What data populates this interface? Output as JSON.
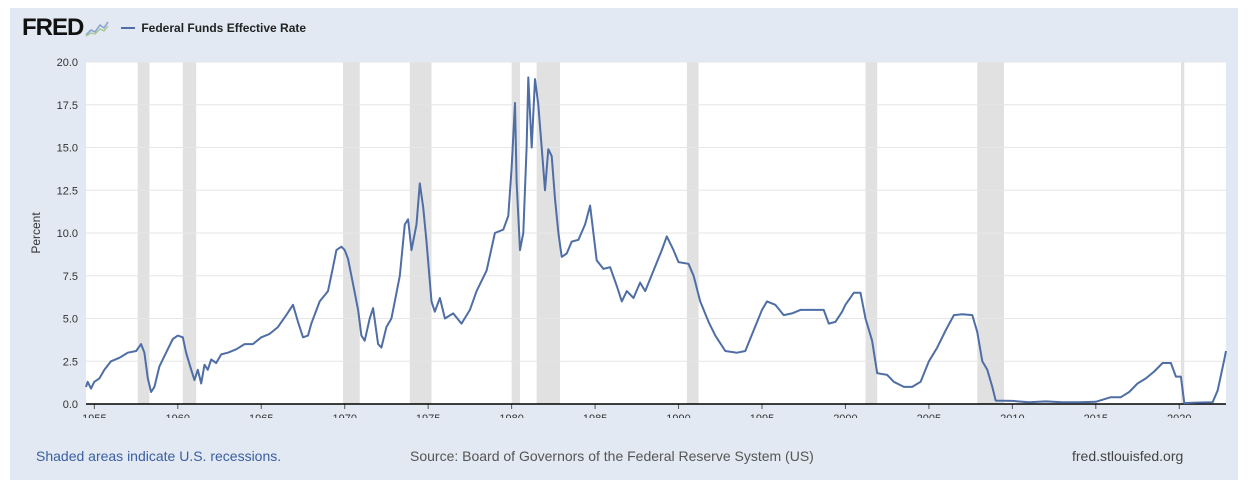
{
  "header": {
    "logo": "FRED",
    "legend_label": "Federal Funds Effective Rate"
  },
  "footer": {
    "note": "Shaded areas indicate U.S. recessions.",
    "source": "Source: Board of Governors of the Federal Reserve System (US)",
    "site": "fred.stlouisfed.org"
  },
  "colors": {
    "series": "#4e6ea5",
    "panel": "#e2e9f2",
    "plot": "#ffffff",
    "recession": "#e1e1e1",
    "grid": "#e6e6e6"
  },
  "chart_data": {
    "type": "line",
    "title": "",
    "xlabel": "",
    "ylabel": "Percent",
    "xlim": [
      1954.5,
      2022.8
    ],
    "ylim": [
      0,
      20
    ],
    "x_ticks": [
      1955,
      1960,
      1965,
      1970,
      1975,
      1980,
      1985,
      1990,
      1995,
      2000,
      2005,
      2010,
      2015,
      2020
    ],
    "y_ticks": [
      0.0,
      2.5,
      5.0,
      7.5,
      10.0,
      12.5,
      15.0,
      17.5,
      20.0
    ],
    "y_tick_labels": [
      "0.0",
      "2.5",
      "5.0",
      "7.5",
      "10.0",
      "12.5",
      "15.0",
      "17.5",
      "20.0"
    ],
    "grid": "horizontal",
    "legend": "top-left",
    "recessions": [
      [
        1957.6,
        1958.3
      ],
      [
        1960.3,
        1961.1
      ],
      [
        1969.9,
        1970.9
      ],
      [
        1973.9,
        1975.2
      ],
      [
        1980.0,
        1980.5
      ],
      [
        1981.5,
        1982.9
      ],
      [
        1990.5,
        1991.2
      ],
      [
        2001.2,
        2001.9
      ],
      [
        2007.9,
        2009.5
      ],
      [
        2020.1,
        2020.3
      ]
    ],
    "series": [
      {
        "name": "Federal Funds Effective Rate",
        "points": [
          [
            1954.5,
            1.0
          ],
          [
            1954.6,
            1.3
          ],
          [
            1954.8,
            0.9
          ],
          [
            1955.0,
            1.3
          ],
          [
            1955.3,
            1.5
          ],
          [
            1955.6,
            2.0
          ],
          [
            1956.0,
            2.5
          ],
          [
            1956.5,
            2.7
          ],
          [
            1957.0,
            3.0
          ],
          [
            1957.5,
            3.1
          ],
          [
            1957.8,
            3.5
          ],
          [
            1958.0,
            3.0
          ],
          [
            1958.2,
            1.5
          ],
          [
            1958.4,
            0.7
          ],
          [
            1958.6,
            1.0
          ],
          [
            1958.9,
            2.2
          ],
          [
            1959.3,
            3.0
          ],
          [
            1959.7,
            3.8
          ],
          [
            1960.0,
            4.0
          ],
          [
            1960.3,
            3.9
          ],
          [
            1960.5,
            3.0
          ],
          [
            1960.8,
            2.0
          ],
          [
            1961.0,
            1.4
          ],
          [
            1961.2,
            2.0
          ],
          [
            1961.4,
            1.2
          ],
          [
            1961.6,
            2.3
          ],
          [
            1961.8,
            2.0
          ],
          [
            1962.0,
            2.6
          ],
          [
            1962.3,
            2.4
          ],
          [
            1962.6,
            2.9
          ],
          [
            1963.0,
            3.0
          ],
          [
            1963.5,
            3.2
          ],
          [
            1964.0,
            3.5
          ],
          [
            1964.5,
            3.5
          ],
          [
            1965.0,
            3.9
          ],
          [
            1965.5,
            4.1
          ],
          [
            1966.0,
            4.5
          ],
          [
            1966.5,
            5.2
          ],
          [
            1966.9,
            5.8
          ],
          [
            1967.2,
            4.8
          ],
          [
            1967.5,
            3.9
          ],
          [
            1967.8,
            4.0
          ],
          [
            1968.0,
            4.7
          ],
          [
            1968.5,
            6.0
          ],
          [
            1969.0,
            6.6
          ],
          [
            1969.3,
            8.0
          ],
          [
            1969.5,
            9.0
          ],
          [
            1969.8,
            9.2
          ],
          [
            1970.0,
            9.0
          ],
          [
            1970.2,
            8.5
          ],
          [
            1970.5,
            7.0
          ],
          [
            1970.8,
            5.5
          ],
          [
            1971.0,
            4.0
          ],
          [
            1971.2,
            3.7
          ],
          [
            1971.5,
            5.0
          ],
          [
            1971.7,
            5.6
          ],
          [
            1972.0,
            3.5
          ],
          [
            1972.2,
            3.3
          ],
          [
            1972.5,
            4.5
          ],
          [
            1972.8,
            5.0
          ],
          [
            1973.0,
            6.0
          ],
          [
            1973.3,
            7.5
          ],
          [
            1973.6,
            10.5
          ],
          [
            1973.8,
            10.8
          ],
          [
            1974.0,
            9.0
          ],
          [
            1974.3,
            10.5
          ],
          [
            1974.5,
            12.9
          ],
          [
            1974.7,
            11.5
          ],
          [
            1974.9,
            9.5
          ],
          [
            1975.2,
            6.0
          ],
          [
            1975.4,
            5.4
          ],
          [
            1975.7,
            6.2
          ],
          [
            1976.0,
            5.0
          ],
          [
            1976.5,
            5.3
          ],
          [
            1977.0,
            4.7
          ],
          [
            1977.5,
            5.5
          ],
          [
            1977.9,
            6.6
          ],
          [
            1978.5,
            7.8
          ],
          [
            1979.0,
            10.0
          ],
          [
            1979.5,
            10.2
          ],
          [
            1979.8,
            11.0
          ],
          [
            1980.0,
            13.8
          ],
          [
            1980.2,
            17.6
          ],
          [
            1980.3,
            13.0
          ],
          [
            1980.5,
            9.0
          ],
          [
            1980.7,
            10.0
          ],
          [
            1980.9,
            15.0
          ],
          [
            1981.0,
            19.1
          ],
          [
            1981.2,
            15.0
          ],
          [
            1981.4,
            19.0
          ],
          [
            1981.6,
            17.5
          ],
          [
            1981.8,
            15.0
          ],
          [
            1982.0,
            12.5
          ],
          [
            1982.2,
            14.9
          ],
          [
            1982.4,
            14.5
          ],
          [
            1982.6,
            12.0
          ],
          [
            1982.8,
            10.0
          ],
          [
            1983.0,
            8.6
          ],
          [
            1983.3,
            8.8
          ],
          [
            1983.6,
            9.5
          ],
          [
            1984.0,
            9.6
          ],
          [
            1984.4,
            10.5
          ],
          [
            1984.7,
            11.6
          ],
          [
            1984.9,
            10.0
          ],
          [
            1985.1,
            8.4
          ],
          [
            1985.5,
            7.9
          ],
          [
            1985.9,
            8.0
          ],
          [
            1986.3,
            6.9
          ],
          [
            1986.6,
            6.0
          ],
          [
            1986.9,
            6.6
          ],
          [
            1987.3,
            6.2
          ],
          [
            1987.7,
            7.1
          ],
          [
            1988.0,
            6.6
          ],
          [
            1988.5,
            7.8
          ],
          [
            1989.0,
            9.0
          ],
          [
            1989.3,
            9.8
          ],
          [
            1989.7,
            9.0
          ],
          [
            1990.0,
            8.3
          ],
          [
            1990.6,
            8.2
          ],
          [
            1990.9,
            7.5
          ],
          [
            1991.3,
            6.0
          ],
          [
            1991.8,
            4.8
          ],
          [
            1992.2,
            4.0
          ],
          [
            1992.8,
            3.1
          ],
          [
            1993.5,
            3.0
          ],
          [
            1994.0,
            3.1
          ],
          [
            1994.5,
            4.3
          ],
          [
            1995.0,
            5.5
          ],
          [
            1995.3,
            6.0
          ],
          [
            1995.8,
            5.8
          ],
          [
            1996.3,
            5.2
          ],
          [
            1996.8,
            5.3
          ],
          [
            1997.3,
            5.5
          ],
          [
            1998.0,
            5.5
          ],
          [
            1998.7,
            5.5
          ],
          [
            1999.0,
            4.7
          ],
          [
            1999.4,
            4.8
          ],
          [
            1999.8,
            5.4
          ],
          [
            2000.0,
            5.8
          ],
          [
            2000.5,
            6.5
          ],
          [
            2000.9,
            6.5
          ],
          [
            2001.2,
            5.0
          ],
          [
            2001.6,
            3.7
          ],
          [
            2001.9,
            1.8
          ],
          [
            2002.5,
            1.7
          ],
          [
            2002.9,
            1.3
          ],
          [
            2003.5,
            1.0
          ],
          [
            2004.0,
            1.0
          ],
          [
            2004.5,
            1.3
          ],
          [
            2005.0,
            2.5
          ],
          [
            2005.5,
            3.3
          ],
          [
            2006.0,
            4.3
          ],
          [
            2006.5,
            5.2
          ],
          [
            2007.0,
            5.25
          ],
          [
            2007.6,
            5.2
          ],
          [
            2007.9,
            4.2
          ],
          [
            2008.2,
            2.5
          ],
          [
            2008.5,
            2.0
          ],
          [
            2008.8,
            1.0
          ],
          [
            2009.0,
            0.2
          ],
          [
            2010.0,
            0.18
          ],
          [
            2011.0,
            0.1
          ],
          [
            2012.0,
            0.15
          ],
          [
            2013.0,
            0.1
          ],
          [
            2014.0,
            0.1
          ],
          [
            2015.0,
            0.13
          ],
          [
            2015.9,
            0.4
          ],
          [
            2016.5,
            0.4
          ],
          [
            2017.0,
            0.7
          ],
          [
            2017.5,
            1.2
          ],
          [
            2018.0,
            1.5
          ],
          [
            2018.5,
            1.9
          ],
          [
            2019.0,
            2.4
          ],
          [
            2019.5,
            2.4
          ],
          [
            2019.8,
            1.6
          ],
          [
            2020.1,
            1.6
          ],
          [
            2020.3,
            0.05
          ],
          [
            2021.0,
            0.08
          ],
          [
            2022.0,
            0.1
          ],
          [
            2022.3,
            0.8
          ],
          [
            2022.5,
            1.7
          ],
          [
            2022.7,
            2.6
          ],
          [
            2022.8,
            3.1
          ]
        ]
      }
    ]
  }
}
